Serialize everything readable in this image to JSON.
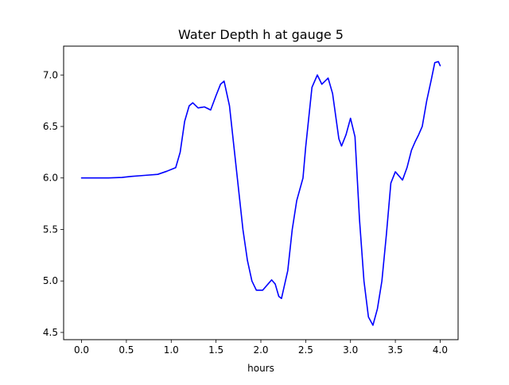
{
  "chart_data": {
    "type": "line",
    "title": "Water Depth h at gauge 5",
    "xlabel": "hours",
    "ylabel": "",
    "xlim": [
      -0.2,
      4.2
    ],
    "ylim": [
      4.43,
      7.28
    ],
    "xticks": [
      0.0,
      0.5,
      1.0,
      1.5,
      2.0,
      2.5,
      3.0,
      3.5,
      4.0
    ],
    "xtick_labels": [
      "0.0",
      "0.5",
      "1.0",
      "1.5",
      "2.0",
      "2.5",
      "3.0",
      "3.5",
      "4.0"
    ],
    "yticks": [
      4.5,
      5.0,
      5.5,
      6.0,
      6.5,
      7.0
    ],
    "ytick_labels": [
      "4.5",
      "5.0",
      "5.5",
      "6.0",
      "6.5",
      "7.0"
    ],
    "grid": false,
    "legend": "none",
    "series": [
      {
        "color": "#0000ff",
        "points": [
          [
            0.0,
            6.0
          ],
          [
            0.3,
            6.0
          ],
          [
            0.45,
            6.005
          ],
          [
            0.55,
            6.015
          ],
          [
            0.7,
            6.025
          ],
          [
            0.85,
            6.035
          ],
          [
            0.95,
            6.065
          ],
          [
            1.05,
            6.1
          ],
          [
            1.1,
            6.25
          ],
          [
            1.15,
            6.55
          ],
          [
            1.2,
            6.7
          ],
          [
            1.24,
            6.73
          ],
          [
            1.3,
            6.68
          ],
          [
            1.37,
            6.69
          ],
          [
            1.44,
            6.66
          ],
          [
            1.5,
            6.8
          ],
          [
            1.55,
            6.91
          ],
          [
            1.59,
            6.94
          ],
          [
            1.65,
            6.7
          ],
          [
            1.7,
            6.3
          ],
          [
            1.75,
            5.9
          ],
          [
            1.8,
            5.5
          ],
          [
            1.85,
            5.2
          ],
          [
            1.9,
            5.0
          ],
          [
            1.95,
            4.91
          ],
          [
            2.02,
            4.91
          ],
          [
            2.08,
            4.97
          ],
          [
            2.12,
            5.01
          ],
          [
            2.16,
            4.97
          ],
          [
            2.2,
            4.85
          ],
          [
            2.23,
            4.83
          ],
          [
            2.3,
            5.1
          ],
          [
            2.35,
            5.5
          ],
          [
            2.4,
            5.78
          ],
          [
            2.47,
            6.0
          ],
          [
            2.5,
            6.3
          ],
          [
            2.57,
            6.88
          ],
          [
            2.63,
            7.0
          ],
          [
            2.68,
            6.91
          ],
          [
            2.75,
            6.97
          ],
          [
            2.8,
            6.82
          ],
          [
            2.87,
            6.38
          ],
          [
            2.9,
            6.31
          ],
          [
            2.95,
            6.42
          ],
          [
            3.0,
            6.58
          ],
          [
            3.05,
            6.4
          ],
          [
            3.1,
            5.6
          ],
          [
            3.15,
            5.0
          ],
          [
            3.2,
            4.65
          ],
          [
            3.25,
            4.57
          ],
          [
            3.3,
            4.73
          ],
          [
            3.35,
            5.0
          ],
          [
            3.4,
            5.45
          ],
          [
            3.45,
            5.95
          ],
          [
            3.5,
            6.06
          ],
          [
            3.55,
            6.01
          ],
          [
            3.58,
            5.98
          ],
          [
            3.63,
            6.1
          ],
          [
            3.68,
            6.27
          ],
          [
            3.72,
            6.35
          ],
          [
            3.76,
            6.42
          ],
          [
            3.8,
            6.5
          ],
          [
            3.85,
            6.75
          ],
          [
            3.9,
            6.95
          ],
          [
            3.94,
            7.12
          ],
          [
            3.98,
            7.13
          ],
          [
            4.0,
            7.09
          ]
        ]
      }
    ]
  }
}
